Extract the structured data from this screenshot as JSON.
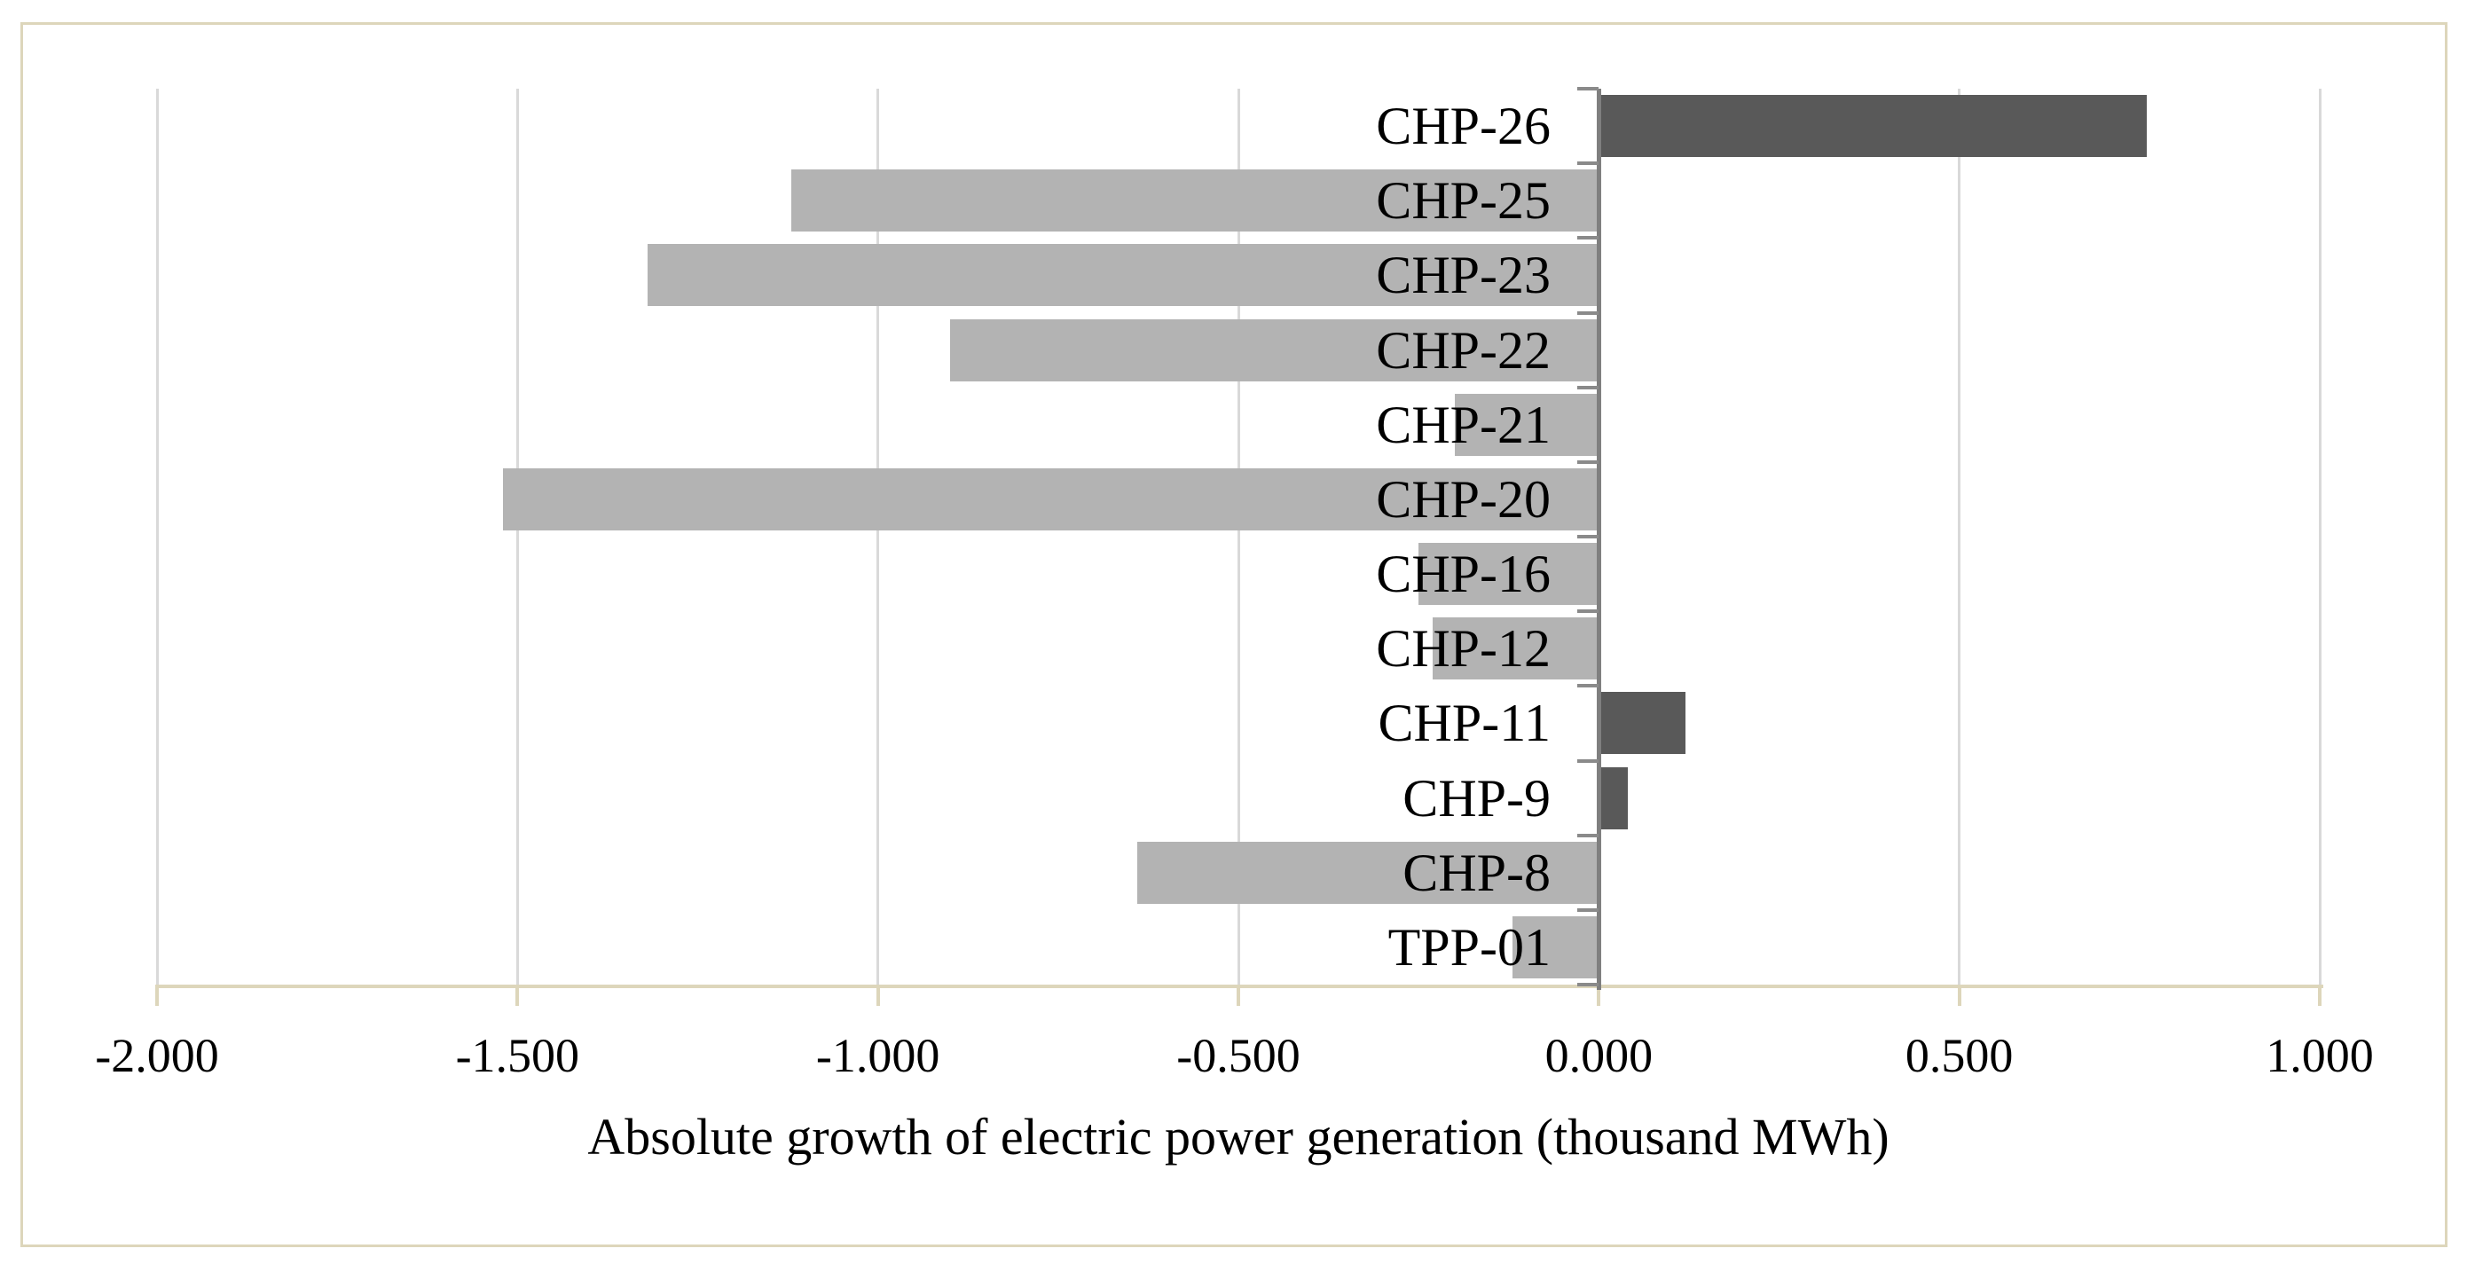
{
  "chart_data": {
    "type": "bar",
    "orientation": "horizontal",
    "title": "",
    "xlabel": "Absolute growth of electric power generation (thousand MWh)",
    "ylabel": "",
    "categories": [
      "CHP-26",
      "CHP-25",
      "CHP-23",
      "CHP-22",
      "CHP-21",
      "CHP-20",
      "CHP-16",
      "CHP-12",
      "CHP-11",
      "CHP-9",
      "CHP-8",
      "TPP-01"
    ],
    "values": [
      0.76,
      -1.12,
      -1.32,
      -0.9,
      -0.2,
      -1.52,
      -0.25,
      -0.23,
      0.12,
      0.04,
      -0.64,
      -0.12
    ],
    "xlim": [
      -2.0,
      1.0
    ],
    "x_tick_values": [
      -2.0,
      -1.5,
      -1.0,
      -0.5,
      0.0,
      0.5,
      1.0
    ],
    "x_tick_labels": [
      "-2.000",
      "-1.500",
      "-1.000",
      "-0.500",
      "0.000",
      "0.500",
      "1.000"
    ],
    "grid": "vertical-gridlines-on",
    "legend": "none",
    "colors": {
      "positive_bar": "#595959",
      "negative_bar": "#b3b3b3",
      "gridline": "#d9d9d9",
      "category_axis": "#7f7f7f",
      "value_axis_line": "#ddd6bb",
      "frame_border": "#ddd6bb",
      "text": "#000000",
      "background": "#ffffff"
    }
  }
}
